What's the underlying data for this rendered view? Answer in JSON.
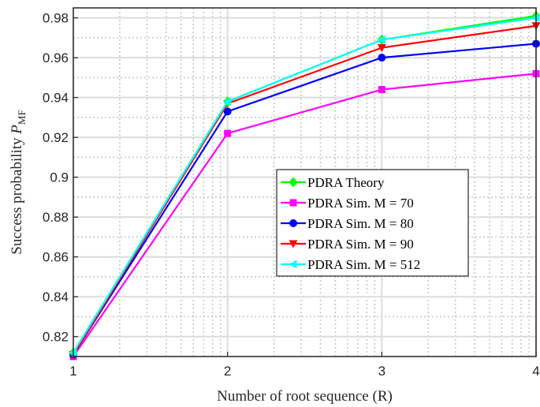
{
  "chart_data": {
    "type": "line",
    "xlabel": "Number of root sequence (R)",
    "ylabel": "Success probability P_MF",
    "xlim": [
      1,
      4
    ],
    "ylim": [
      0.81,
      0.985
    ],
    "x_ticks": [
      1,
      2,
      3,
      4
    ],
    "x_tick_labels": [
      "1",
      "2",
      "3",
      "4"
    ],
    "y_ticks": [
      0.82,
      0.84,
      0.86,
      0.88,
      0.9,
      0.92,
      0.94,
      0.96,
      0.98
    ],
    "y_tick_labels": [
      "0.82",
      "0.84",
      "0.86",
      "0.88",
      "0.9",
      "0.92",
      "0.94",
      "0.96",
      "0.98"
    ],
    "grid": "on (major and minor)",
    "legend_placement": "lower-right",
    "x": [
      1,
      2,
      3,
      4
    ],
    "series": [
      {
        "name": "PDRA Theory",
        "values": [
          0.812,
          0.938,
          0.969,
          0.981
        ],
        "color": "#00ff00",
        "marker": "diamond"
      },
      {
        "name": "PDRA Sim. M = 70",
        "values": [
          0.81,
          0.922,
          0.944,
          0.952
        ],
        "color": "#ff00ff",
        "marker": "square"
      },
      {
        "name": "PDRA Sim. M = 80",
        "values": [
          0.811,
          0.933,
          0.96,
          0.967
        ],
        "color": "#0000ff",
        "marker": "circle"
      },
      {
        "name": "PDRA Sim. M = 90",
        "values": [
          0.811,
          0.937,
          0.965,
          0.976
        ],
        "color": "#ff0000",
        "marker": "triangle-down"
      },
      {
        "name": "PDRA Sim. M = 512",
        "values": [
          0.812,
          0.938,
          0.969,
          0.98
        ],
        "color": "#00ffff",
        "marker": "triangle-left"
      }
    ]
  }
}
